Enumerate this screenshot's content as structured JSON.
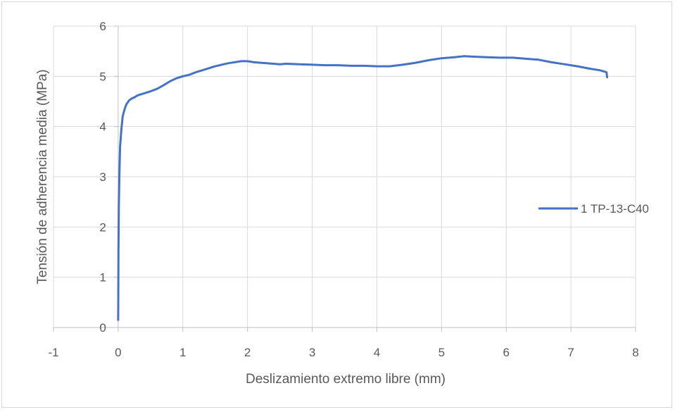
{
  "chart_data": {
    "type": "line",
    "title": "",
    "xlabel": "Deslizamiento extremo libre (mm)",
    "ylabel": "Tensión de adherencia media (MPa)",
    "xlim": [
      -1,
      8
    ],
    "ylim": [
      0,
      6
    ],
    "x_ticks": [
      "-1",
      "0",
      "1",
      "2",
      "3",
      "4",
      "5",
      "6",
      "7",
      "8"
    ],
    "y_ticks": [
      "0",
      "1",
      "2",
      "3",
      "4",
      "5",
      "6"
    ],
    "grid": true,
    "legend_position": "right",
    "series": [
      {
        "name": "1 TP-13-C40",
        "color": "#4472C4",
        "x": [
          0.0,
          0.005,
          0.01,
          0.02,
          0.03,
          0.05,
          0.07,
          0.1,
          0.13,
          0.17,
          0.2,
          0.25,
          0.3,
          0.4,
          0.5,
          0.6,
          0.7,
          0.8,
          0.9,
          1.0,
          1.1,
          1.2,
          1.3,
          1.4,
          1.5,
          1.6,
          1.7,
          1.8,
          1.9,
          2.0,
          2.1,
          2.2,
          2.3,
          2.4,
          2.5,
          2.6,
          2.8,
          3.0,
          3.2,
          3.4,
          3.6,
          3.8,
          4.0,
          4.2,
          4.4,
          4.6,
          4.8,
          5.0,
          5.2,
          5.35,
          5.5,
          5.7,
          5.9,
          6.1,
          6.3,
          6.5,
          6.7,
          6.9,
          7.1,
          7.3,
          7.45,
          7.5,
          7.55,
          7.56
        ],
        "values": [
          0.15,
          1.5,
          2.4,
          3.1,
          3.6,
          3.95,
          4.2,
          4.35,
          4.45,
          4.52,
          4.55,
          4.58,
          4.62,
          4.66,
          4.7,
          4.75,
          4.82,
          4.9,
          4.96,
          5.0,
          5.03,
          5.08,
          5.12,
          5.16,
          5.2,
          5.23,
          5.26,
          5.28,
          5.3,
          5.3,
          5.28,
          5.27,
          5.26,
          5.25,
          5.24,
          5.25,
          5.24,
          5.23,
          5.22,
          5.22,
          5.21,
          5.21,
          5.2,
          5.2,
          5.23,
          5.27,
          5.32,
          5.36,
          5.38,
          5.4,
          5.39,
          5.38,
          5.37,
          5.37,
          5.35,
          5.33,
          5.28,
          5.24,
          5.2,
          5.15,
          5.12,
          5.1,
          5.08,
          4.98
        ]
      }
    ]
  }
}
